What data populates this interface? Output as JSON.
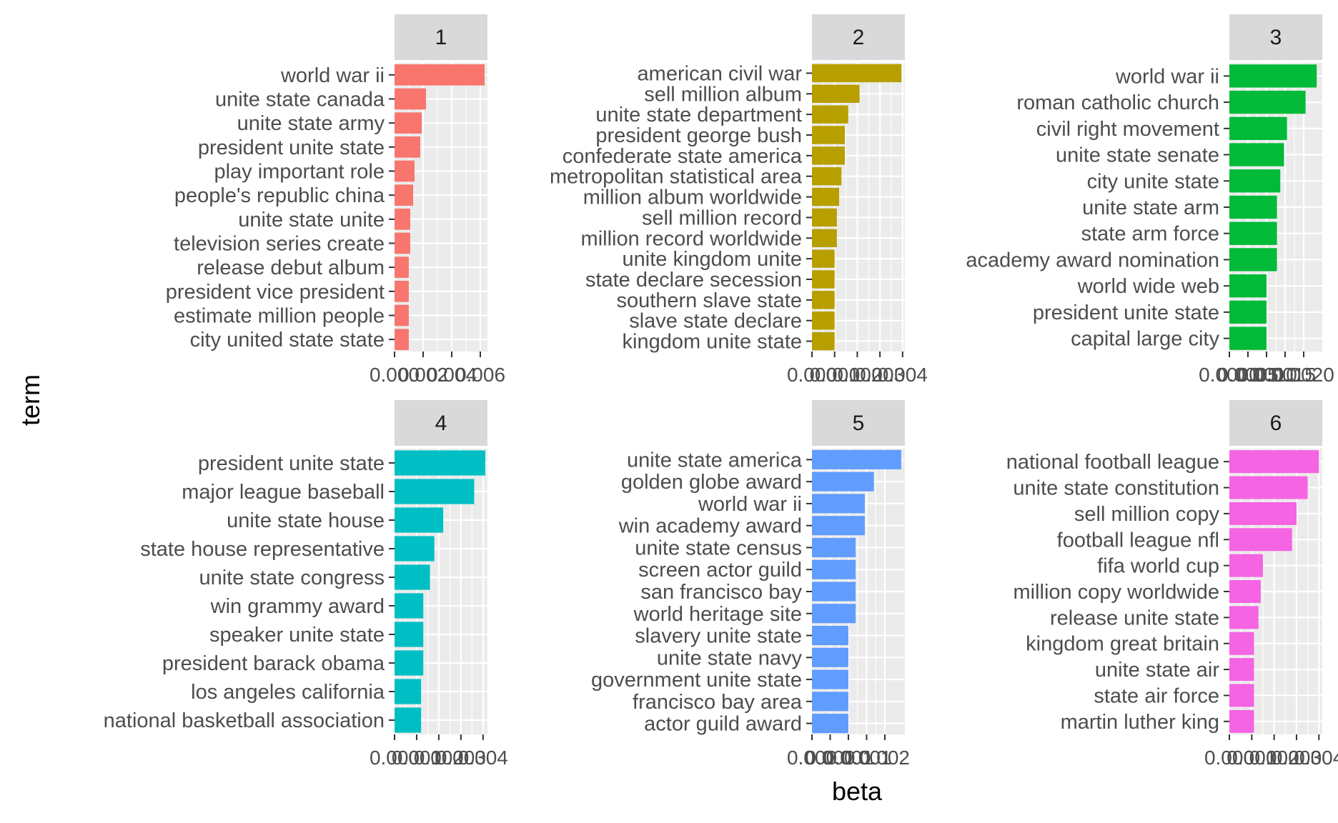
{
  "axes": {
    "x_title": "beta",
    "y_title": "term"
  },
  "chart_data": [
    {
      "type": "bar",
      "facet_label": "1",
      "color": "#F8766D",
      "xlim": [
        0,
        0.0065
      ],
      "ticks": [
        0,
        0.002,
        0.004,
        0.006
      ],
      "tick_labels": [
        "0.000",
        "0.002",
        "0.004",
        "0.006"
      ],
      "categories": [
        "world war ii",
        "unite state canada",
        "unite state army",
        "president unite state",
        "play important role",
        "people's republic china",
        "unite state unite",
        "television series create",
        "release debut album",
        "president vice president",
        "estimate million people",
        "city united state state"
      ],
      "values": [
        0.0063,
        0.0022,
        0.0019,
        0.0018,
        0.0014,
        0.0013,
        0.0011,
        0.0011,
        0.001,
        0.001,
        0.001,
        0.001
      ]
    },
    {
      "type": "bar",
      "facet_label": "2",
      "color": "#B79F00",
      "xlim": [
        0,
        0.0041
      ],
      "ticks": [
        0,
        0.001,
        0.002,
        0.003,
        0.004
      ],
      "tick_labels": [
        "0.000",
        "0.001",
        "0.002",
        "0.003",
        "0.004"
      ],
      "categories": [
        "american civil war",
        "sell million album",
        "unite state department",
        "president george bush",
        "confederate state america",
        "metropolitan statistical area",
        "million album worldwide",
        "sell million record",
        "million record worldwide",
        "unite kingdom unite",
        "state declare secession",
        "southern slave state",
        "slave state declare",
        "kingdom unite state"
      ],
      "values": [
        0.00395,
        0.0021,
        0.0016,
        0.00145,
        0.00145,
        0.0013,
        0.0012,
        0.0011,
        0.0011,
        0.001,
        0.001,
        0.001,
        0.001,
        0.001
      ]
    },
    {
      "type": "bar",
      "facet_label": "3",
      "color": "#00BA38",
      "xlim": [
        0,
        0.0025
      ],
      "ticks": [
        0,
        0.0005,
        0.001,
        0.0015,
        0.002
      ],
      "tick_labels": [
        "0.0000",
        "0.0005",
        "0.0010",
        "0.0015",
        "0.0020"
      ],
      "categories": [
        "world war ii",
        "roman catholic church",
        "civil right movement",
        "unite state senate",
        "city unite state",
        "unite state arm",
        "state arm force",
        "academy award nomination",
        "world wide web",
        "president unite state",
        "capital large city"
      ],
      "values": [
        0.00235,
        0.00205,
        0.00155,
        0.00147,
        0.00137,
        0.00128,
        0.00128,
        0.00128,
        0.001,
        0.001,
        0.001
      ]
    },
    {
      "type": "bar",
      "facet_label": "4",
      "color": "#00BFC4",
      "xlim": [
        0,
        0.0042
      ],
      "ticks": [
        0,
        0.001,
        0.002,
        0.003,
        0.004
      ],
      "tick_labels": [
        "0.000",
        "0.001",
        "0.002",
        "0.003",
        "0.004"
      ],
      "categories": [
        "president unite state",
        "major league baseball",
        "unite state house",
        "state house representative",
        "unite state congress",
        "win grammy award",
        "speaker unite state",
        "president barack obama",
        "los angeles california",
        "national basketball association"
      ],
      "values": [
        0.0041,
        0.0036,
        0.0022,
        0.0018,
        0.0016,
        0.0013,
        0.0013,
        0.0013,
        0.0012,
        0.0012
      ]
    },
    {
      "type": "bar",
      "facet_label": "5",
      "color": "#619CFF",
      "xlim": [
        0,
        0.00255
      ],
      "ticks": [
        0,
        0.0005,
        0.001,
        0.0015,
        0.002
      ],
      "tick_labels": [
        "0.000",
        "0.000",
        "0.001",
        "0.001",
        "0.002"
      ],
      "categories": [
        "unite state america",
        "golden globe award",
        "world war ii",
        "win academy award",
        "unite state census",
        "screen actor guild",
        "san francisco bay",
        "world heritage site",
        "slavery unite state",
        "unite state navy",
        "government unite state",
        "francisco bay area",
        "actor guild award"
      ],
      "values": [
        0.00245,
        0.0017,
        0.00145,
        0.00145,
        0.0012,
        0.0012,
        0.0012,
        0.0012,
        0.001,
        0.001,
        0.001,
        0.001,
        0.001
      ]
    },
    {
      "type": "bar",
      "facet_label": "6",
      "color": "#F564E3",
      "xlim": [
        0,
        0.00415
      ],
      "ticks": [
        0,
        0.001,
        0.002,
        0.003,
        0.004
      ],
      "tick_labels": [
        "0.000",
        "0.001",
        "0.002",
        "0.003",
        "0.004"
      ],
      "categories": [
        "national football league",
        "unite state constitution",
        "sell million copy",
        "football league nfl",
        "fifa world cup",
        "million copy worldwide",
        "release unite state",
        "kingdom great britain",
        "unite state air",
        "state air force",
        "martin luther king"
      ],
      "values": [
        0.004,
        0.0035,
        0.003,
        0.0028,
        0.0015,
        0.0014,
        0.0013,
        0.0011,
        0.0011,
        0.0011,
        0.0011
      ]
    }
  ]
}
